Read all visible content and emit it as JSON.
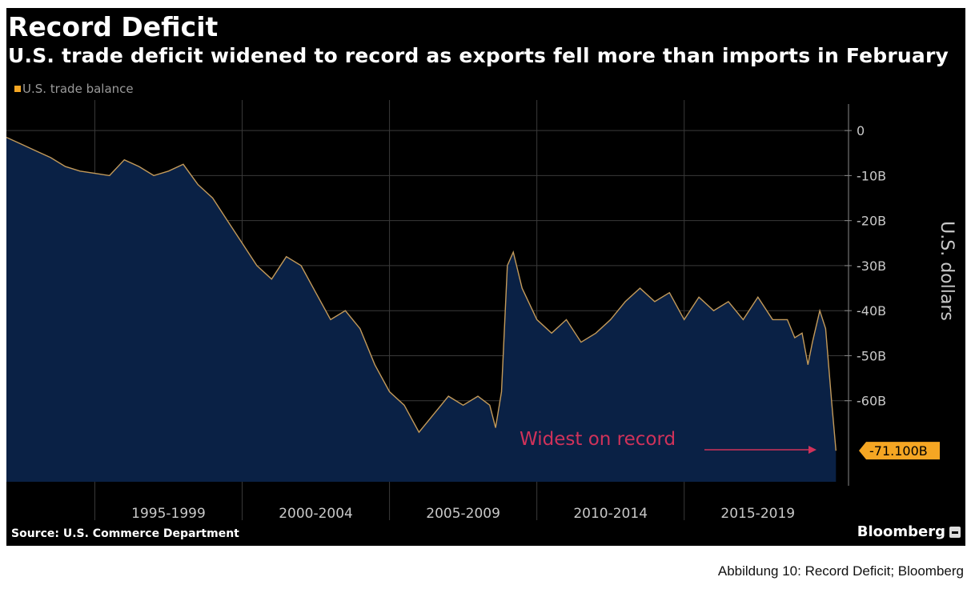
{
  "caption": "Abbildung 10: Record Deficit; Bloomberg",
  "footer": {
    "source": "Source: U.S. Commerce Department",
    "brand": "Bloomberg",
    "brand_icon": "bloomberg-terminal-icon"
  },
  "colors": {
    "background": "#000000",
    "area": "#0a2145",
    "line": "#c39a5a",
    "accent": "#f5a623",
    "annotation": "#d0325a",
    "grid": "#3a3a3a",
    "text": "#c8c8c8"
  },
  "chart_data": {
    "type": "area",
    "title": "Record Deficit",
    "subtitle": "U.S. trade deficit widened to record as exports fell more than imports in February",
    "legend": [
      "U.S. trade balance"
    ],
    "legend_position": "top-left",
    "ylabel": "U.S. dollars",
    "y_axis_side": "right",
    "ylim": [
      -78,
      5
    ],
    "yticks": [
      0,
      -10,
      -20,
      -30,
      -40,
      -50,
      -60
    ],
    "ytick_labels": [
      "0",
      "-10B",
      "-20B",
      "-30B",
      "-40B",
      "-50B",
      "-60B"
    ],
    "xlim": [
      1992.0,
      2020.25
    ],
    "x_period_labels": [
      {
        "label": "1995-1999",
        "start": 1995,
        "end": 2000
      },
      {
        "label": "2000-2004",
        "start": 2000,
        "end": 2005
      },
      {
        "label": "2005-2009",
        "start": 2005,
        "end": 2010
      },
      {
        "label": "2010-2014",
        "start": 2010,
        "end": 2015
      },
      {
        "label": "2015-2019",
        "start": 2015,
        "end": 2020
      }
    ],
    "grid": true,
    "last_value": -71.1,
    "last_value_label": "-71.100B",
    "annotation": "Widest on record",
    "series": [
      {
        "name": "U.S. trade balance",
        "x": [
          1992.0,
          1992.5,
          1993.0,
          1993.5,
          1994.0,
          1994.5,
          1995.0,
          1995.5,
          1996.0,
          1996.5,
          1997.0,
          1997.5,
          1998.0,
          1998.5,
          1999.0,
          1999.5,
          2000.0,
          2000.5,
          2001.0,
          2001.5,
          2002.0,
          2002.5,
          2003.0,
          2003.5,
          2004.0,
          2004.5,
          2005.0,
          2005.5,
          2006.0,
          2006.5,
          2007.0,
          2007.5,
          2008.0,
          2008.4,
          2008.6,
          2008.8,
          2009.0,
          2009.2,
          2009.5,
          2010.0,
          2010.5,
          2011.0,
          2011.5,
          2012.0,
          2012.5,
          2013.0,
          2013.5,
          2014.0,
          2014.5,
          2015.0,
          2015.5,
          2016.0,
          2016.5,
          2017.0,
          2017.5,
          2018.0,
          2018.5,
          2018.75,
          2019.0,
          2019.2,
          2019.35,
          2019.6,
          2019.8,
          2020.0,
          2020.15
        ],
        "y": [
          -1.5,
          -3,
          -4.5,
          -6,
          -8,
          -9,
          -9.5,
          -10,
          -6.5,
          -8,
          -10,
          -9,
          -7.5,
          -12,
          -15,
          -20,
          -25,
          -30,
          -33,
          -28,
          -30,
          -36,
          -42,
          -40,
          -44,
          -52,
          -58,
          -61,
          -67,
          -63,
          -59,
          -61,
          -59,
          -61,
          -66,
          -58,
          -30,
          -27,
          -35,
          -42,
          -45,
          -42,
          -47,
          -45,
          -42,
          -38,
          -35,
          -38,
          -36,
          -42,
          -37,
          -40,
          -38,
          -42,
          -37,
          -42,
          -42,
          -46,
          -45,
          -52,
          -47,
          -40,
          -44,
          -60,
          -71.1
        ]
      }
    ]
  }
}
